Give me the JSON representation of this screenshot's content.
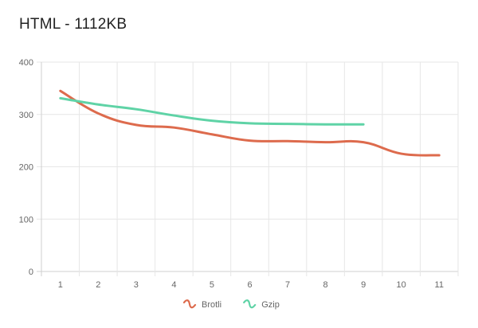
{
  "chart_data": {
    "type": "line",
    "title": "HTML - 1112KB",
    "xlabel": "",
    "ylabel": "",
    "x": [
      1,
      2,
      3,
      4,
      5,
      6,
      7,
      8,
      9,
      10,
      11
    ],
    "xlim": [
      0.5,
      11.5
    ],
    "ylim": [
      0,
      400
    ],
    "yticks": [
      0,
      100,
      200,
      300,
      400
    ],
    "grid": true,
    "legend_position": "bottom",
    "series": [
      {
        "name": "Brotli",
        "color": "#dd6b4d",
        "x": [
          1,
          2,
          3,
          4,
          5,
          6,
          7,
          8,
          9,
          10,
          11
        ],
        "values": [
          345,
          302,
          280,
          275,
          262,
          250,
          249,
          247,
          247,
          225,
          222
        ]
      },
      {
        "name": "Gzip",
        "color": "#5fd3a6",
        "x": [
          1,
          2,
          3,
          4,
          5,
          6,
          7,
          8,
          9
        ],
        "values": [
          331,
          319,
          310,
          298,
          288,
          283,
          282,
          281,
          281
        ]
      }
    ]
  }
}
